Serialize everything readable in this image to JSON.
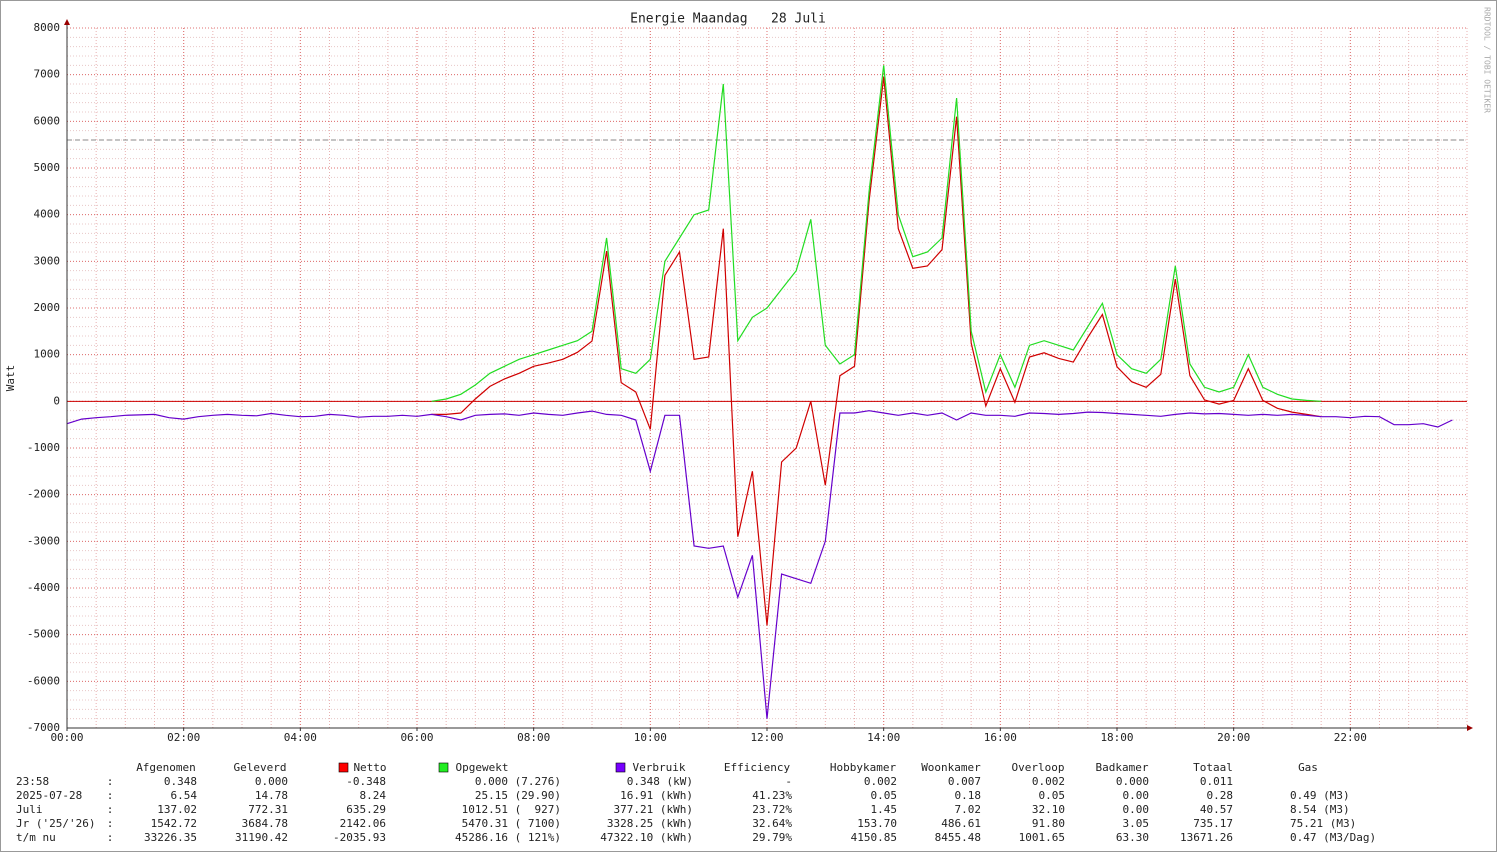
{
  "chart_data": {
    "type": "line",
    "title": "Energie Maandag   28 Juli",
    "ylabel": "Watt",
    "watermark": "RRDTOOL / TOBI OETIKER",
    "xlim": [
      0,
      24
    ],
    "ylim": [
      -7000,
      8000
    ],
    "xticks": [
      {
        "value": 0,
        "label": "00:00"
      },
      {
        "value": 2,
        "label": "02:00"
      },
      {
        "value": 4,
        "label": "04:00"
      },
      {
        "value": 6,
        "label": "06:00"
      },
      {
        "value": 8,
        "label": "08:00"
      },
      {
        "value": 10,
        "label": "10:00"
      },
      {
        "value": 12,
        "label": "12:00"
      },
      {
        "value": 14,
        "label": "14:00"
      },
      {
        "value": 16,
        "label": "16:00"
      },
      {
        "value": 18,
        "label": "18:00"
      },
      {
        "value": 20,
        "label": "20:00"
      },
      {
        "value": 22,
        "label": "22:00"
      }
    ],
    "yticks": [
      -7000,
      -6000,
      -5000,
      -4000,
      -3000,
      -2000,
      -1000,
      0,
      1000,
      2000,
      3000,
      4000,
      5000,
      6000,
      7000,
      8000
    ],
    "grid": true,
    "x_minor_step": 0.5,
    "y_minor_step": 200,
    "hrules": [
      {
        "value": 0,
        "color": "#cc0000",
        "dashed": false
      },
      {
        "value": 5600,
        "color": "#888888",
        "dashed": true
      }
    ],
    "x": [
      0,
      0.25,
      0.5,
      0.75,
      1,
      1.25,
      1.5,
      1.75,
      2,
      2.25,
      2.5,
      2.75,
      3,
      3.25,
      3.5,
      3.75,
      4,
      4.25,
      4.5,
      4.75,
      5,
      5.25,
      5.5,
      5.75,
      6,
      6.25,
      6.5,
      6.75,
      7,
      7.25,
      7.5,
      7.75,
      8,
      8.25,
      8.5,
      8.75,
      9,
      9.25,
      9.5,
      9.75,
      10,
      10.25,
      10.5,
      10.75,
      11,
      11.25,
      11.5,
      11.75,
      12,
      12.25,
      12.5,
      12.75,
      13,
      13.25,
      13.5,
      13.75,
      14,
      14.25,
      14.5,
      14.75,
      15,
      15.25,
      15.5,
      15.75,
      16,
      16.25,
      16.5,
      16.75,
      17,
      17.25,
      17.5,
      17.75,
      18,
      18.25,
      18.5,
      18.75,
      19,
      19.25,
      19.5,
      19.75,
      20,
      20.25,
      20.5,
      20.75,
      21,
      21.25,
      21.5,
      21.75,
      22,
      22.25,
      22.5,
      22.75,
      23,
      23.25,
      23.5,
      23.75
    ],
    "series": [
      {
        "name": "Netto",
        "color": "#d00000",
        "marker": "#ff0000",
        "values": [
          null,
          null,
          null,
          null,
          null,
          null,
          null,
          null,
          null,
          null,
          null,
          null,
          null,
          null,
          null,
          null,
          null,
          null,
          null,
          null,
          null,
          null,
          null,
          null,
          null,
          -280,
          -280,
          -250,
          50,
          320,
          480,
          600,
          750,
          820,
          900,
          1050,
          1290,
          3220,
          400,
          200,
          -600,
          2700,
          3200,
          900,
          950,
          3700,
          -2900,
          -1500,
          -4800,
          -1300,
          -1000,
          0,
          -1800,
          550,
          750,
          4300,
          6950,
          3700,
          2850,
          2900,
          3250,
          6100,
          1250,
          -100,
          700,
          -20,
          950,
          1040,
          920,
          840,
          1370,
          1860,
          740,
          420,
          300,
          580,
          2620,
          550,
          30,
          -60,
          20,
          700,
          20,
          -150,
          -230,
          -280,
          -330,
          null,
          null,
          null,
          null,
          null,
          null,
          null,
          null,
          null
        ]
      },
      {
        "name": "Opgewekt",
        "color": "#22dd22",
        "marker": "#22ee22",
        "values": [
          null,
          null,
          null,
          null,
          null,
          null,
          null,
          null,
          null,
          null,
          null,
          null,
          null,
          null,
          null,
          null,
          null,
          null,
          null,
          null,
          null,
          null,
          null,
          null,
          null,
          0,
          50,
          150,
          350,
          600,
          750,
          900,
          1000,
          1100,
          1200,
          1300,
          1500,
          3500,
          700,
          600,
          900,
          3000,
          3500,
          4000,
          4100,
          6800,
          1300,
          1800,
          2000,
          2400,
          2800,
          3900,
          1200,
          800,
          1000,
          4500,
          7200,
          4000,
          3100,
          3200,
          3500,
          6500,
          1500,
          200,
          1000,
          300,
          1200,
          1300,
          1200,
          1100,
          1600,
          2100,
          1000,
          700,
          600,
          900,
          2900,
          800,
          300,
          200,
          300,
          1000,
          300,
          150,
          50,
          20,
          0,
          null,
          null,
          null,
          null,
          null,
          null,
          null,
          null,
          null
        ]
      },
      {
        "name": "Verbruik",
        "color": "#6600cc",
        "marker": "#7700ff",
        "values": [
          -480,
          -380,
          -350,
          -330,
          -300,
          -290,
          -280,
          -350,
          -380,
          -330,
          -300,
          -280,
          -300,
          -310,
          -260,
          -300,
          -330,
          -320,
          -280,
          -300,
          -340,
          -320,
          -320,
          -300,
          -320,
          -280,
          -330,
          -400,
          -300,
          -280,
          -270,
          -300,
          -250,
          -280,
          -300,
          -250,
          -210,
          -280,
          -300,
          -400,
          -1500,
          -300,
          -300,
          -3100,
          -3150,
          -3100,
          -4200,
          -3300,
          -6800,
          -3700,
          -3800,
          -3900,
          -3000,
          -250,
          -250,
          -200,
          -250,
          -300,
          -250,
          -300,
          -250,
          -400,
          -250,
          -300,
          -300,
          -320,
          -250,
          -260,
          -280,
          -260,
          -230,
          -240,
          -260,
          -280,
          -300,
          -320,
          -280,
          -250,
          -270,
          -260,
          -280,
          -300,
          -280,
          -300,
          -280,
          -300,
          -330,
          -330,
          -350,
          -320,
          -330,
          -500,
          -500,
          -480,
          -550,
          -400
        ]
      }
    ],
    "table": {
      "headers": [
        "Afgenomen",
        "Geleverd",
        "Efficiency",
        "Hobbykamer",
        "Woonkamer",
        "Overloop",
        "Badkamer",
        "Totaal",
        "Gas"
      ],
      "rows": [
        [
          "23:58",
          ":",
          "0.348",
          "0.000",
          "-0.348",
          "0.000 (7.276)",
          "0.348 (kW)",
          "-",
          "0.002",
          "0.007",
          "0.002",
          "0.000",
          "0.011"
        ],
        [
          "2025-07-28",
          ":",
          "6.54",
          "14.78",
          "8.24",
          "25.15 (29.90)",
          "16.91 (kWh)",
          "41.23%",
          "0.05",
          "0.18",
          "0.05",
          "0.00",
          "0.28",
          "0.49 (M3)"
        ],
        [
          "Juli",
          ":",
          "137.02",
          "772.31",
          "635.29",
          "1012.51 (  927)",
          "377.21 (kWh)",
          "23.72%",
          "1.45",
          "7.02",
          "32.10",
          "0.00",
          "40.57",
          "8.54 (M3)"
        ],
        [
          "Jr ('25/'26)",
          ":",
          "1542.72",
          "3684.78",
          "2142.06",
          "5470.31 ( 7100)",
          "3328.25 (kWh)",
          "32.64%",
          "153.70",
          "486.61",
          "91.80",
          "3.05",
          "735.17",
          "75.21 (M3)"
        ],
        [
          "t/m nu",
          ":",
          "33226.35",
          "31190.42",
          "-2035.93",
          "45286.16 ( 121%)",
          "47322.10 (kWh)",
          "29.79%",
          "4150.85",
          "8455.48",
          "1001.65",
          "63.30",
          "13671.26",
          "0.47 (M3/Dag)"
        ]
      ]
    }
  }
}
